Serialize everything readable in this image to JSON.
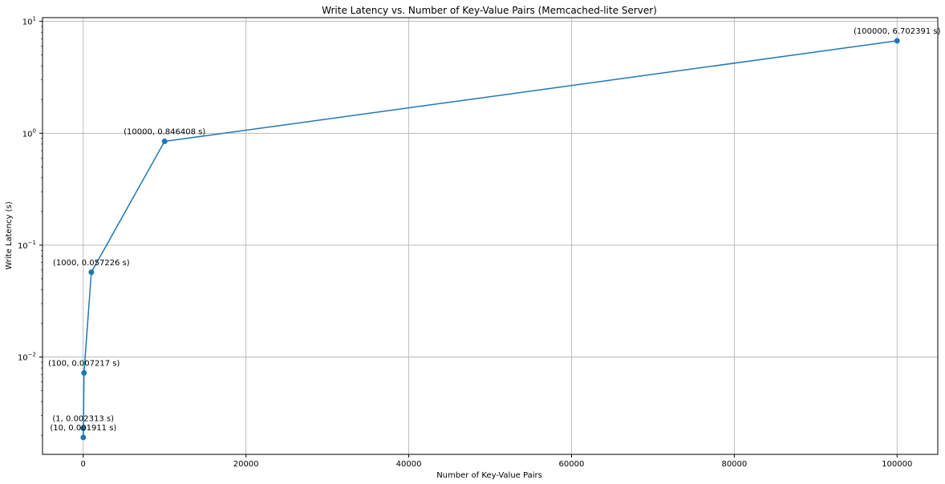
{
  "chart_data": {
    "type": "line",
    "title": "Write Latency vs. Number of Key-Value Pairs (Memcached-lite Server)",
    "xlabel": "Number of Key-Value Pairs",
    "ylabel": "Write Latency (s)",
    "xlim": [
      -5000,
      105000
    ],
    "ylim": [
      0.00135,
      10.8
    ],
    "yscale": "log",
    "grid": true,
    "x_ticks": [
      {
        "value": 0,
        "label": "0"
      },
      {
        "value": 20000,
        "label": "20000"
      },
      {
        "value": 40000,
        "label": "40000"
      },
      {
        "value": 60000,
        "label": "60000"
      },
      {
        "value": 80000,
        "label": "80000"
      },
      {
        "value": 100000,
        "label": "100000"
      }
    ],
    "y_ticks": [
      {
        "value": 0.01,
        "base": "10",
        "exp": "−2"
      },
      {
        "value": 0.1,
        "base": "10",
        "exp": "−1"
      },
      {
        "value": 1,
        "base": "10",
        "exp": "0"
      },
      {
        "value": 10,
        "base": "10",
        "exp": "1"
      }
    ],
    "series": [
      {
        "color": "#1f77b4",
        "points": [
          {
            "x": 1,
            "y": 0.002313,
            "label": "(1, 0.002313 s)"
          },
          {
            "x": 10,
            "y": 0.001911,
            "label": "(10, 0.001911 s)"
          },
          {
            "x": 100,
            "y": 0.007217,
            "label": "(100, 0.007217 s)"
          },
          {
            "x": 1000,
            "y": 0.057226,
            "label": "(1000, 0.057226 s)"
          },
          {
            "x": 10000,
            "y": 0.846408,
            "label": "(10000, 0.846408 s)"
          },
          {
            "x": 100000,
            "y": 6.702391,
            "label": "(100000, 6.702391 s)"
          }
        ]
      }
    ]
  }
}
